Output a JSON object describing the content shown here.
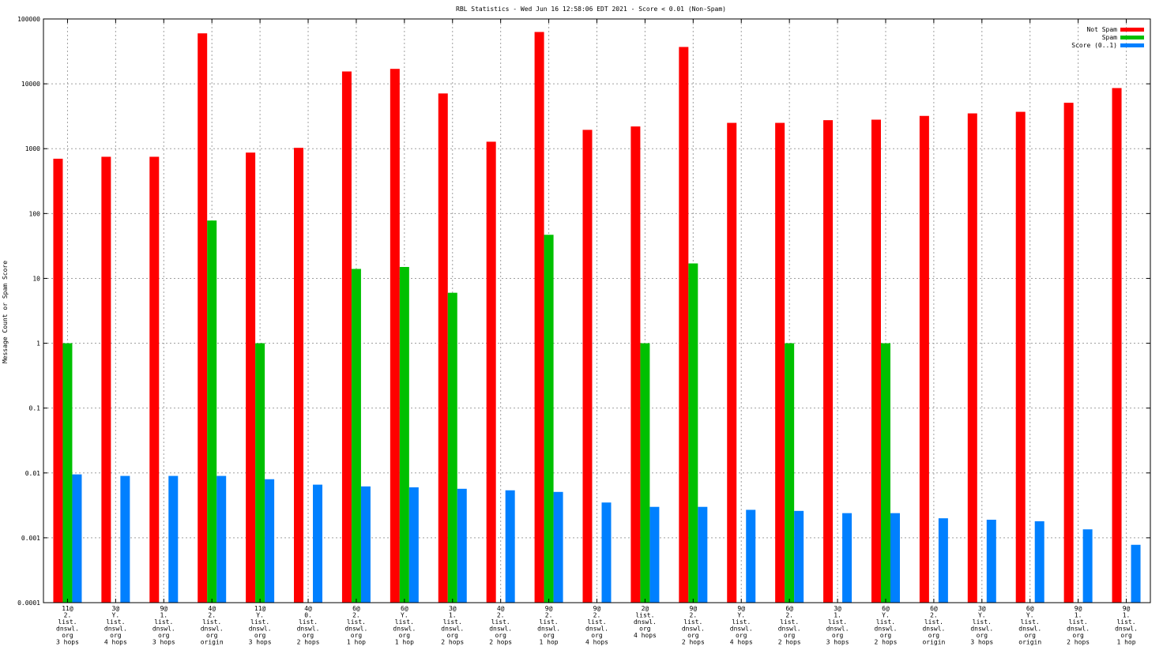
{
  "chart_data": {
    "type": "bar",
    "title": "RBL Statistics - Wed Jun 16 12:58:06 EDT 2021 - Score < 0.01 (Non-Spam)",
    "xlabel": "",
    "ylabel": "Message Count or Spam Score",
    "yscale": "log",
    "ylim": [
      0.0001,
      100000
    ],
    "yticks": [
      "0.0001",
      "0.001",
      "0.01",
      "0.1",
      "1",
      "10",
      "100",
      "1000",
      "10000",
      "100000"
    ],
    "grid": true,
    "legend_position": "top-right",
    "categories": [
      [
        "11@",
        "2.",
        "list.",
        "dnswl.",
        "org",
        "3 hops"
      ],
      [
        "3@",
        "Y.",
        "list.",
        "dnswl.",
        "org",
        "4 hops"
      ],
      [
        "9@",
        "1.",
        "list.",
        "dnswl.",
        "org",
        "3 hops"
      ],
      [
        "4@",
        "2.",
        "list.",
        "dnswl.",
        "org",
        "origin"
      ],
      [
        "11@",
        "Y.",
        "list.",
        "dnswl.",
        "org",
        "3 hops"
      ],
      [
        "4@",
        "0.",
        "list.",
        "dnswl.",
        "org",
        "2 hops"
      ],
      [
        "6@",
        "2.",
        "list.",
        "dnswl.",
        "org",
        "1 hop"
      ],
      [
        "6@",
        "Y.",
        "list.",
        "dnswl.",
        "org",
        "1 hop"
      ],
      [
        "3@",
        "1.",
        "list.",
        "dnswl.",
        "org",
        "2 hops"
      ],
      [
        "4@",
        "2.",
        "list.",
        "dnswl.",
        "org",
        "2 hops"
      ],
      [
        "9@",
        "2.",
        "list.",
        "dnswl.",
        "org",
        "1 hop"
      ],
      [
        "9@",
        "2.",
        "list.",
        "dnswl.",
        "org",
        "4 hops"
      ],
      [
        "2@",
        "list.",
        "dnswl.",
        "org",
        "4 hops"
      ],
      [
        "9@",
        "2.",
        "list.",
        "dnswl.",
        "org",
        "2 hops"
      ],
      [
        "9@",
        "Y.",
        "list.",
        "dnswl.",
        "org",
        "4 hops"
      ],
      [
        "6@",
        "2.",
        "list.",
        "dnswl.",
        "org",
        "2 hops"
      ],
      [
        "3@",
        "1.",
        "list.",
        "dnswl.",
        "org",
        "3 hops"
      ],
      [
        "6@",
        "Y.",
        "list.",
        "dnswl.",
        "org",
        "2 hops"
      ],
      [
        "6@",
        "2.",
        "list.",
        "dnswl.",
        "org",
        "origin"
      ],
      [
        "3@",
        "Y.",
        "list.",
        "dnswl.",
        "org",
        "3 hops"
      ],
      [
        "6@",
        "Y.",
        "list.",
        "dnswl.",
        "org",
        "origin"
      ],
      [
        "9@",
        "1.",
        "list.",
        "dnswl.",
        "org",
        "2 hops"
      ],
      [
        "9@",
        "1.",
        "list.",
        "dnswl.",
        "org",
        "1 hop"
      ]
    ],
    "series": [
      {
        "name": "Not Spam",
        "color": "#ff0000",
        "values": [
          700,
          750,
          750,
          60000,
          870,
          1030,
          15500,
          17000,
          7100,
          1280,
          63000,
          1950,
          2200,
          37000,
          2500,
          2500,
          2750,
          2800,
          3200,
          3500,
          3700,
          5100,
          8600
        ]
      },
      {
        "name": "Spam",
        "color": "#00c000",
        "values": [
          1,
          null,
          null,
          78,
          1,
          null,
          14,
          15,
          6,
          null,
          47,
          null,
          1,
          17,
          null,
          1,
          null,
          1,
          null,
          null,
          null,
          null,
          null
        ]
      },
      {
        "name": "Score (0..1)",
        "color": "#0080ff",
        "values": [
          0.0095,
          0.009,
          0.009,
          0.009,
          0.008,
          0.0066,
          0.0062,
          0.006,
          0.0057,
          0.0054,
          0.0051,
          0.0035,
          0.003,
          0.003,
          0.0027,
          0.0026,
          0.0024,
          0.0024,
          0.002,
          0.0019,
          0.0018,
          0.00135,
          0.00078
        ]
      }
    ]
  }
}
